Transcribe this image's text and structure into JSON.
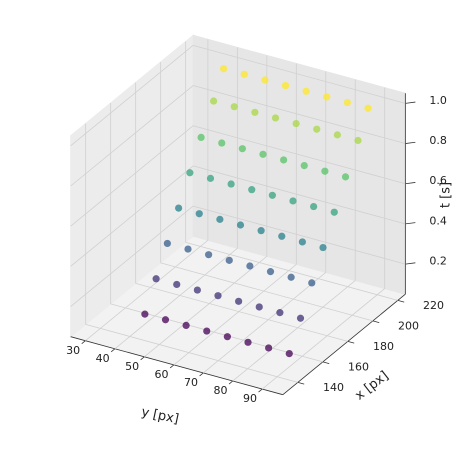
{
  "chart_data": {
    "type": "scatter3d",
    "xlabel": "y [px]",
    "ylabel": "x [px]",
    "zlabel": "t [s]",
    "colormap": "viridis",
    "grid": true,
    "ylim": [
      25,
      97
    ],
    "yticks": [
      30,
      40,
      50,
      60,
      70,
      80,
      90
    ],
    "xlim": [
      128,
      226
    ],
    "xticks": [
      140,
      160,
      180,
      200,
      220
    ],
    "zlim": [
      0.05,
      1.05
    ],
    "zticks": [
      0.2,
      0.4,
      0.6,
      0.8,
      {
        "value": 1,
        "label": "1.0"
      }
    ],
    "series": [
      {
        "y": [
          40,
          47,
          54,
          61,
          68,
          75,
          82,
          89,
          40,
          47,
          54,
          61,
          68,
          75,
          82,
          89,
          40,
          47,
          54,
          61,
          68,
          75,
          82,
          89,
          40,
          47,
          54,
          61,
          68,
          75,
          82,
          89,
          40,
          47,
          54,
          61,
          68,
          75,
          82,
          89,
          40,
          47,
          54,
          61,
          68,
          75,
          82,
          89,
          40,
          47,
          54,
          61,
          68,
          75,
          82,
          89,
          40,
          47,
          54,
          61,
          68,
          75,
          82,
          89
        ],
        "x": [
          152,
          152,
          152,
          152,
          152,
          152,
          152,
          152,
          161,
          161,
          161,
          161,
          161,
          161,
          161,
          161,
          170,
          170,
          170,
          170,
          170,
          170,
          170,
          170,
          179,
          179,
          179,
          179,
          179,
          179,
          179,
          179,
          188,
          188,
          188,
          188,
          188,
          188,
          188,
          188,
          197,
          197,
          197,
          197,
          197,
          197,
          197,
          197,
          207,
          207,
          207,
          207,
          207,
          207,
          207,
          207,
          215,
          215,
          215,
          215,
          215,
          215,
          215,
          215
        ],
        "t": [
          0.1,
          0.1,
          0.1,
          0.1,
          0.1,
          0.1,
          0.1,
          0.1,
          0.23,
          0.23,
          0.23,
          0.23,
          0.23,
          0.23,
          0.23,
          0.23,
          0.36,
          0.36,
          0.36,
          0.36,
          0.36,
          0.36,
          0.36,
          0.36,
          0.49,
          0.49,
          0.49,
          0.49,
          0.49,
          0.49,
          0.49,
          0.49,
          0.62,
          0.62,
          0.62,
          0.62,
          0.62,
          0.62,
          0.62,
          0.62,
          0.75,
          0.75,
          0.75,
          0.75,
          0.75,
          0.75,
          0.75,
          0.75,
          0.88,
          0.88,
          0.88,
          0.88,
          0.88,
          0.88,
          0.88,
          0.88,
          1.0,
          1.0,
          1.0,
          1.0,
          1.0,
          1.0,
          1.0,
          1.0
        ]
      }
    ]
  }
}
